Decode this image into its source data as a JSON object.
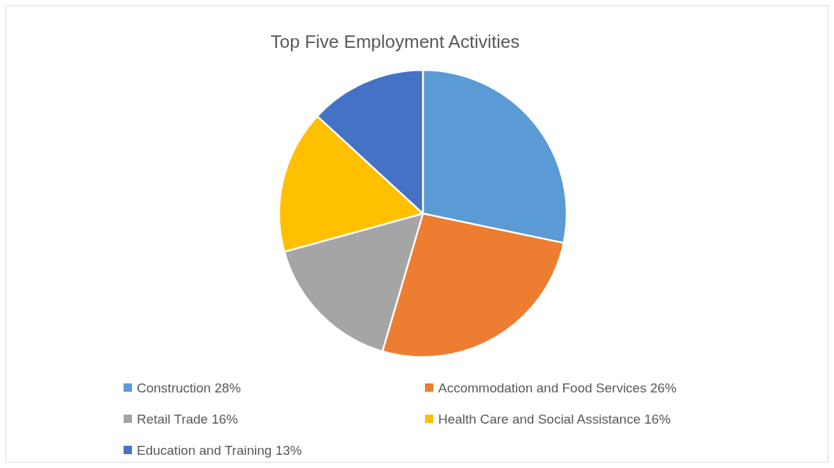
{
  "chart_data": {
    "type": "pie",
    "title": "Top Five Employment Activities",
    "categories": [
      "Construction 28%",
      "Accommodation and Food Services 26%",
      "Retail Trade 16%",
      "Health Care and Social Assistance 16%",
      "Education and Training 13%"
    ],
    "values": [
      28,
      26,
      16,
      16,
      13
    ],
    "colors": [
      "#5b9bd5",
      "#ed7d31",
      "#a5a5a5",
      "#ffc000",
      "#4472c4"
    ],
    "legend": "bottom"
  }
}
